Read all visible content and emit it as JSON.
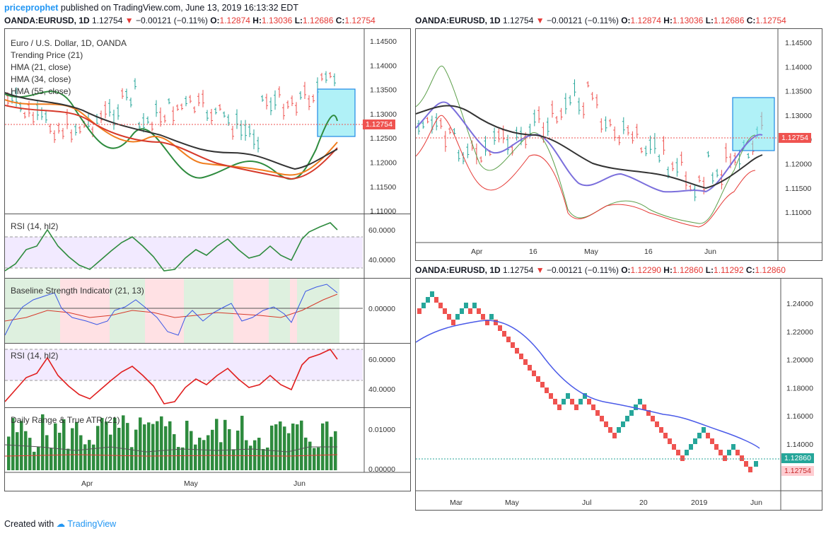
{
  "header": {
    "author": "priceprophet",
    "published": "published on TradingView.com, June 13, 2019 16:13:32 EDT"
  },
  "footer": {
    "created": "Created with",
    "brand": "TradingView"
  },
  "left_chart": {
    "symbol": "OANDA:EURUSD, 1D",
    "last": "1.12754",
    "change": "−0.00121 (−0.11%)",
    "open": "1.12874",
    "high": "1.13036",
    "low": "1.12686",
    "close": "1.12754",
    "legend": [
      "Euro / U.S. Dollar, 1D, OANDA",
      "Trending Price (21)",
      "HMA (21, close)",
      "HMA (34, close)",
      "HMA (55, close)"
    ],
    "price_axis": [
      "1.14500",
      "1.14000",
      "1.13500",
      "1.13000",
      "1.12500",
      "1.12000",
      "1.11500",
      "1.11000"
    ],
    "price_tag": "1.12754",
    "rsi1_label": "RSI (14, hl2)",
    "rsi1_axis": [
      "60.0000",
      "40.0000"
    ],
    "bsi_label": "Baseline Strength Indicator (21, 13)",
    "bsi_axis": [
      "0.00000"
    ],
    "rsi2_label": "RSI (14, hl2)",
    "rsi2_axis": [
      "60.0000",
      "40.0000"
    ],
    "atr_label": "Daily Range & True ATR (21)",
    "atr_axis": [
      "0.01000",
      "0.00000"
    ],
    "x_axis": [
      "Apr",
      "May",
      "Jun"
    ]
  },
  "right_top": {
    "symbol": "OANDA:EURUSD, 1D",
    "last": "1.12754",
    "change": "−0.00121 (−0.11%)",
    "open": "1.12874",
    "high": "1.13036",
    "low": "1.12686",
    "close": "1.12754",
    "price_axis": [
      "1.14500",
      "1.14000",
      "1.13500",
      "1.13000",
      "1.12500",
      "1.12000",
      "1.11500",
      "1.11000"
    ],
    "price_tag": "1.12754",
    "x_axis": [
      "Apr",
      "16",
      "May",
      "16",
      "Jun"
    ]
  },
  "right_bottom": {
    "symbol": "OANDA:EURUSD, 1D",
    "last": "1.12754",
    "change": "−0.00121 (−0.11%)",
    "open": "1.12290",
    "high": "1.12860",
    "low": "1.11292",
    "close": "1.12860",
    "price_axis": [
      "1.24000",
      "1.22000",
      "1.20000",
      "1.18000",
      "1.16000",
      "1.14000",
      "1.12000"
    ],
    "tag_green": "1.12860",
    "tag_red": "1.12754",
    "x_axis": [
      "Mar",
      "May",
      "Jul",
      "20",
      "2019",
      "Jun"
    ]
  },
  "colors": {
    "up": "#26a69a",
    "down": "#ef5350",
    "accent": "#2196f3",
    "highlight": "#6fe6f0"
  }
}
